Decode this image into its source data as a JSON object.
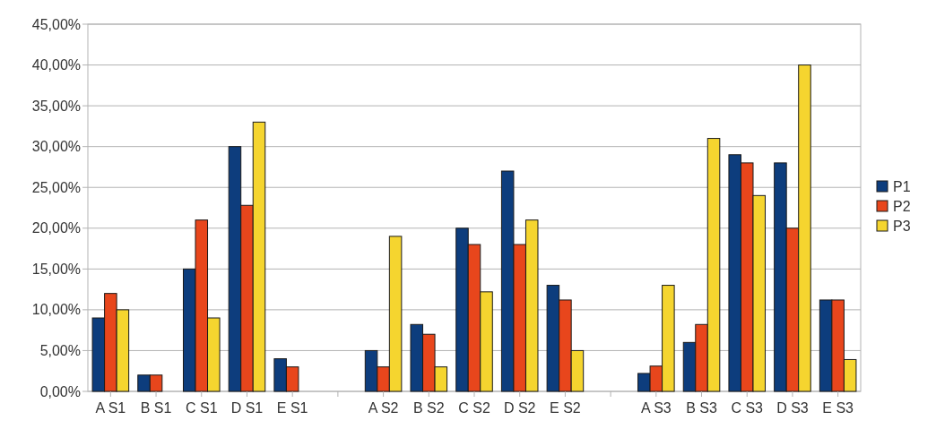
{
  "chart_data": {
    "type": "bar",
    "categories": [
      "A S1",
      "B S1",
      "C S1",
      "D S1",
      "E S1",
      null,
      "A S2",
      "B S2",
      "C S2",
      "D S2",
      "E S2",
      null,
      "A S3",
      "B S3",
      "C S3",
      "D S3",
      "E S3"
    ],
    "series": [
      {
        "name": "P1",
        "color": "#0d3d7d",
        "values": [
          9,
          2,
          15,
          30,
          4,
          null,
          5,
          8.2,
          20,
          27,
          13,
          null,
          2.2,
          6,
          29,
          28,
          11.2
        ]
      },
      {
        "name": "P2",
        "color": "#e8461c",
        "values": [
          12,
          2,
          21,
          22.8,
          3,
          null,
          3,
          7,
          18,
          18,
          11.2,
          null,
          3.1,
          8.2,
          28,
          20,
          11.2
        ]
      },
      {
        "name": "P3",
        "color": "#f5d52f",
        "values": [
          10,
          null,
          9,
          33,
          null,
          null,
          19,
          3,
          12.2,
          21,
          5,
          null,
          13,
          31,
          24,
          40,
          3.9
        ]
      }
    ],
    "ylim": [
      0,
      45
    ],
    "yticks": [
      {
        "value": 0,
        "label": "0,00%"
      },
      {
        "value": 5,
        "label": "5,00%"
      },
      {
        "value": 10,
        "label": "10,00%"
      },
      {
        "value": 15,
        "label": "15,00%"
      },
      {
        "value": 20,
        "label": "20,00%"
      },
      {
        "value": 25,
        "label": "25,00%"
      },
      {
        "value": 30,
        "label": "30,00%"
      },
      {
        "value": 35,
        "label": "35,00%"
      },
      {
        "value": 40,
        "label": "40,00%"
      },
      {
        "value": 45,
        "label": "45,00%"
      }
    ],
    "grid": "y",
    "legend": "right"
  }
}
